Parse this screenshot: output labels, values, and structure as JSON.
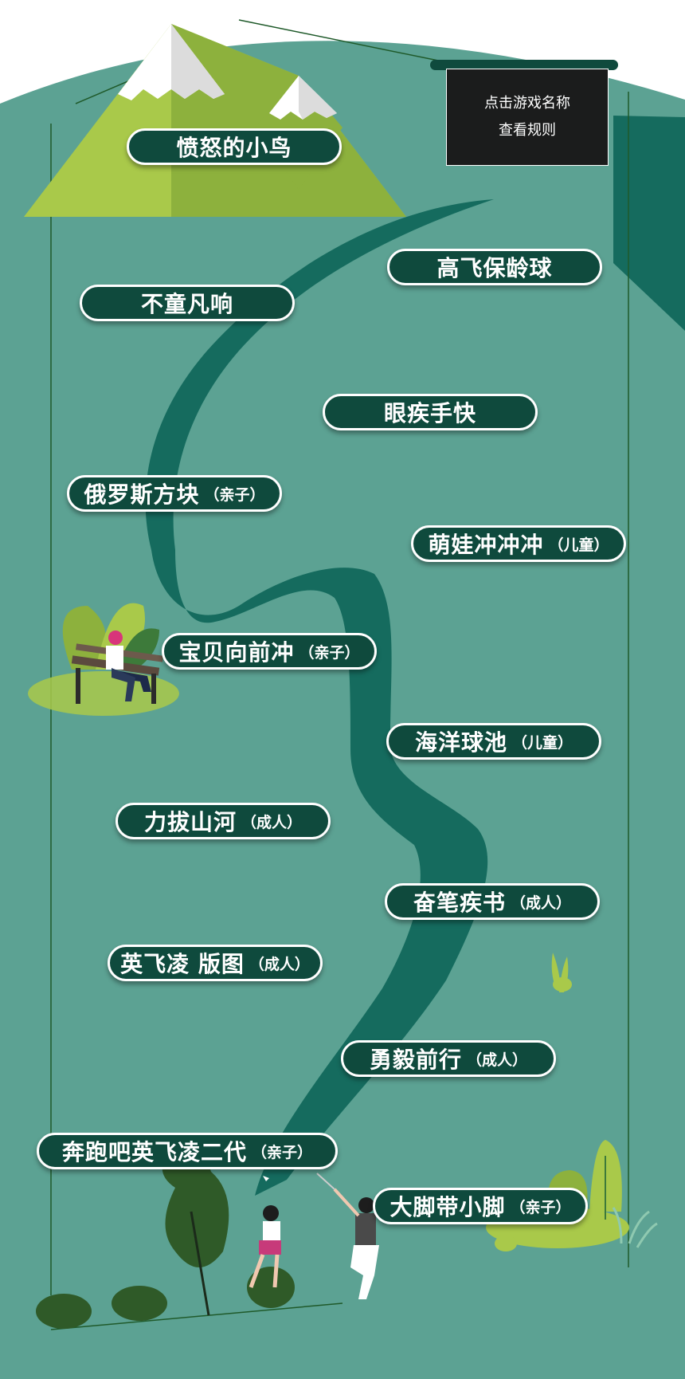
{
  "notice": {
    "line1": "点击游戏名称",
    "line2": "查看规则"
  },
  "games": [
    {
      "name": "愤怒的小鸟",
      "tag": ""
    },
    {
      "name": "高飞保龄球",
      "tag": ""
    },
    {
      "name": "不童凡响",
      "tag": ""
    },
    {
      "name": "眼疾手快",
      "tag": ""
    },
    {
      "name": "俄罗斯方块",
      "tag": "（亲子）"
    },
    {
      "name": "萌娃冲冲冲",
      "tag": "（儿童）"
    },
    {
      "name": "宝贝向前冲",
      "tag": "（亲子）"
    },
    {
      "name": "海洋球池",
      "tag": "（儿童）"
    },
    {
      "name": "力拔山河",
      "tag": "（成人）"
    },
    {
      "name": "奋笔疾书",
      "tag": "（成人）"
    },
    {
      "name": "英飞凌 版图",
      "tag": "（成人）"
    },
    {
      "name": "勇毅前行",
      "tag": "（成人）"
    },
    {
      "name": "奔跑吧英飞凌二代",
      "tag": "（亲子）"
    },
    {
      "name": "大脚带小脚",
      "tag": "（亲子）"
    }
  ],
  "colors": {
    "background": "#5ca293",
    "pill": "#0f4a3d",
    "river": "#156b5e",
    "mountain": "#a9c94a",
    "notice_board": "#1b1c1c"
  }
}
